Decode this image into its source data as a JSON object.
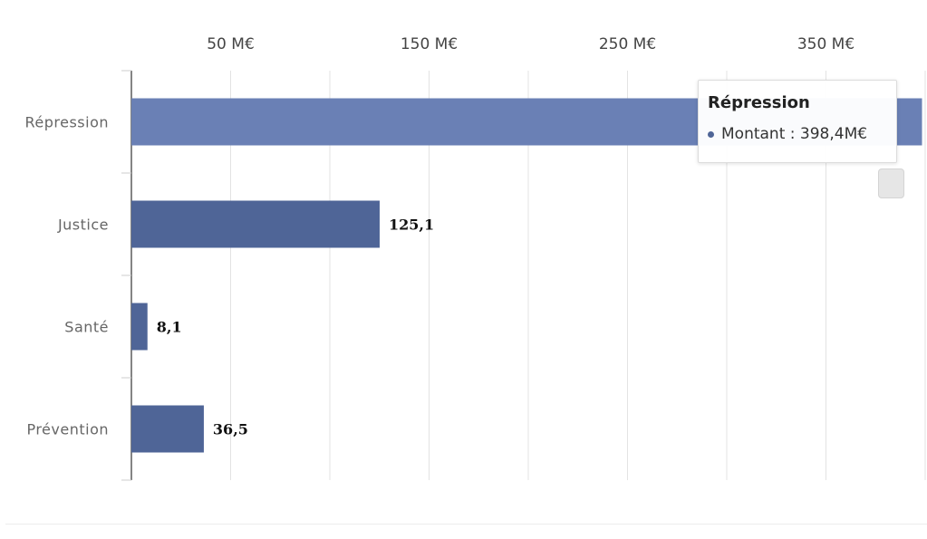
{
  "chart_data": {
    "type": "bar",
    "orientation": "horizontal",
    "categories": [
      "Répression",
      "Justice",
      "Santé",
      "Prévention"
    ],
    "values": [
      398.4,
      125.1,
      8.1,
      36.5
    ],
    "value_labels": [
      "398,4",
      "125,1",
      "8,1",
      "36,5"
    ],
    "x_ticks": [
      50,
      150,
      250,
      350
    ],
    "x_tick_labels": [
      "50 M€",
      "150 M€",
      "250 M€",
      "350 M€"
    ],
    "xlim": [
      0,
      400
    ],
    "grid": true,
    "colors": {
      "bar": "#4f6597",
      "bar_hover": "#6a80b5"
    }
  },
  "tooltip": {
    "title": "Répression",
    "label": "Montant : 398,4M€",
    "color": "#4f6597"
  }
}
